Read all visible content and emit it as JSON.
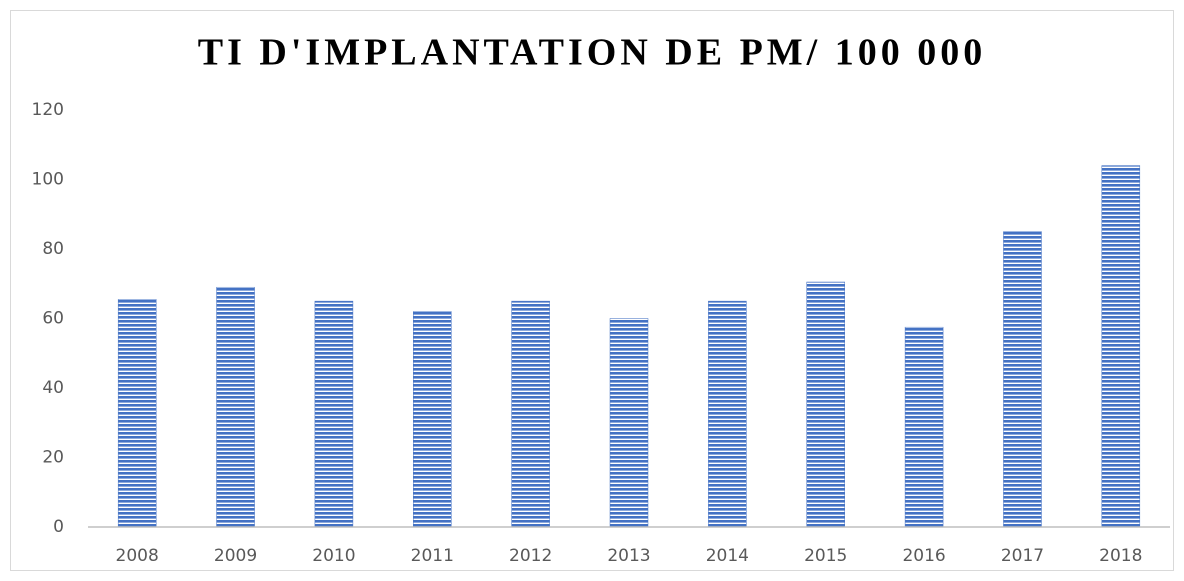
{
  "chart_data": {
    "type": "bar",
    "title": "TI D'IMPLANTATION DE PM/ 100 000",
    "categories": [
      "2008",
      "2009",
      "2010",
      "2011",
      "2012",
      "2013",
      "2014",
      "2015",
      "2016",
      "2017",
      "2018"
    ],
    "values": [
      65.5,
      69,
      65,
      62,
      65,
      60,
      65,
      70.5,
      57.5,
      85,
      104
    ],
    "color": "#4472c4",
    "ylim": [
      0,
      120
    ],
    "yticks": [
      0,
      20,
      40,
      60,
      80,
      100,
      120
    ],
    "grid": false
  }
}
